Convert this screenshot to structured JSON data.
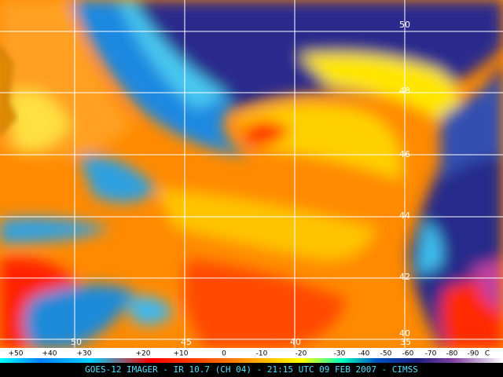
{
  "image": {
    "latitude_labels": [
      "50",
      "48",
      "46",
      "44",
      "42",
      "40"
    ],
    "longitude_labels": [
      "50",
      "45",
      "40",
      "35"
    ],
    "color_scale": {
      "labels": [
        "+50",
        "+40",
        "+30",
        "+20",
        "+10",
        "0",
        "-10",
        "-20",
        "-30",
        "-40",
        "-50",
        "-60",
        "-70",
        "-80",
        "-90",
        "C"
      ]
    },
    "footer": "GOES-12 IMAGER - IR 10.7 (CH 04) - 21:15 UTC 09 FEB 2007 - CIMSS"
  }
}
